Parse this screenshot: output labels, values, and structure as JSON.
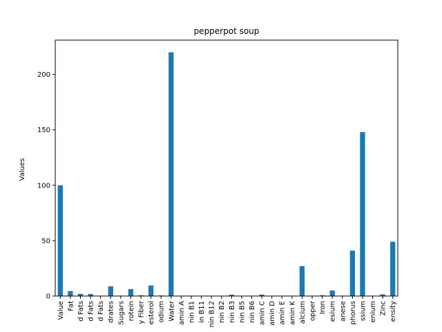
{
  "chart_data": {
    "type": "bar",
    "title": "pepperpot soup",
    "xlabel": "",
    "ylabel": "Values",
    "ylim": [
      0,
      231
    ],
    "yticks": [
      0,
      50,
      100,
      150,
      200
    ],
    "grid": false,
    "legend": "none",
    "bar_color": "#1f77b4",
    "categories": [
      "Value",
      "Fat",
      "d Fats",
      "d Fats",
      "d Fats",
      "drates",
      "Sugars",
      "rotein",
      "y Fiber",
      "esterol",
      "odium",
      "Water",
      "amin A",
      "nin B1",
      "in B11",
      "nin B12",
      "nin B2",
      "nin B3",
      "nin B5",
      "nin B6",
      "amin C",
      "amin D",
      "amin E",
      "amin K",
      "alcium",
      "opper",
      "Iron",
      "esium",
      "anese",
      "phorus",
      "ssium",
      "enium",
      "Zinc",
      "ensity"
    ],
    "values": [
      100,
      4.5,
      2.0,
      1.8,
      0.3,
      8.8,
      0.4,
      6.3,
      0.7,
      9.5,
      0.5,
      220,
      0.1,
      0.1,
      0.1,
      0.1,
      0.2,
      1.2,
      0.3,
      0.2,
      1.3,
      0.1,
      0.2,
      0.1,
      27,
      0.2,
      0.7,
      5.0,
      0.4,
      41,
      148,
      0.2,
      1.5,
      49
    ]
  }
}
